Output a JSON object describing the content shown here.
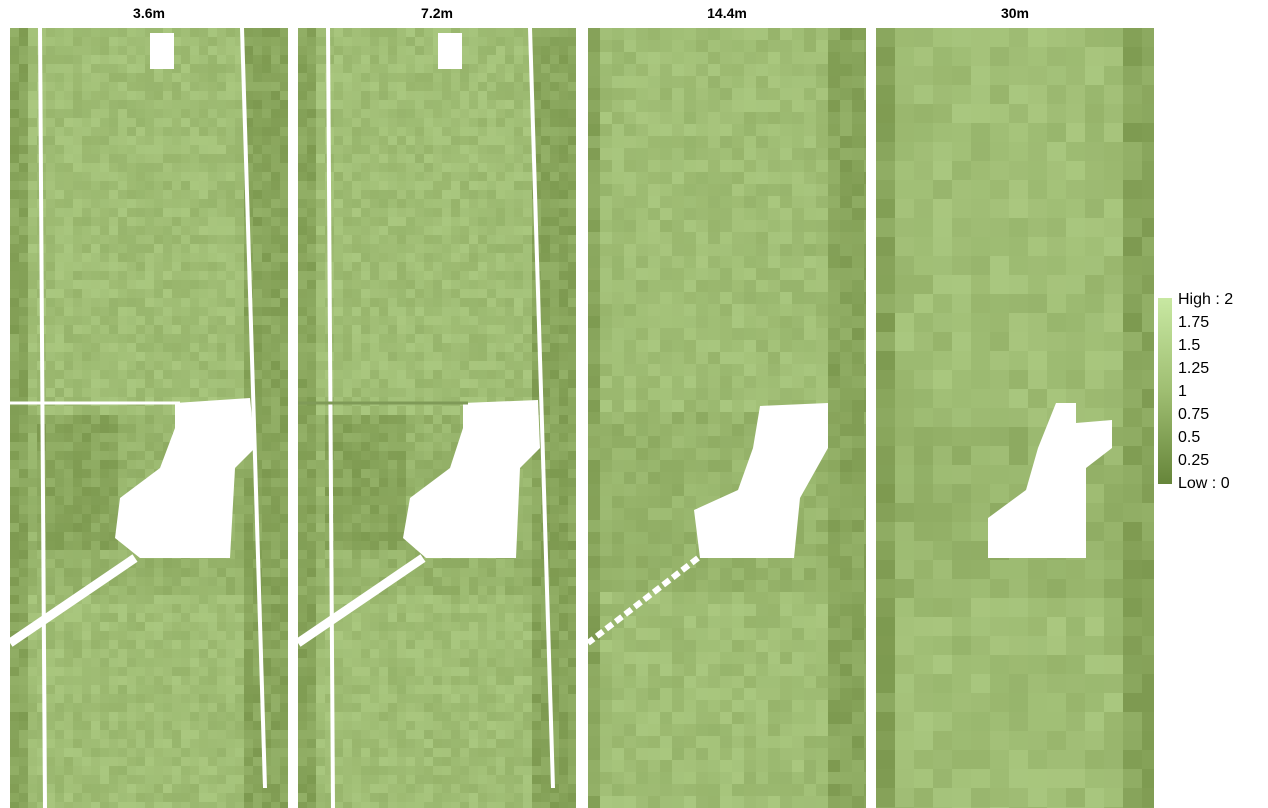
{
  "panels": [
    {
      "title": "3.6m"
    },
    {
      "title": "7.2m"
    },
    {
      "title": "14.4m"
    },
    {
      "title": "30m"
    }
  ],
  "legend": {
    "labels": [
      "High : 2",
      "1.75",
      "1.5",
      "1.25",
      "1",
      "0.75",
      "0.5",
      "0.25",
      "Low : 0"
    ]
  }
}
